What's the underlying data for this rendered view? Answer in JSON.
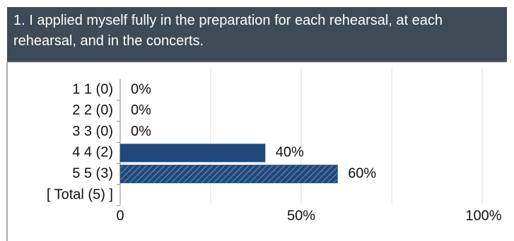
{
  "question": {
    "title": "1. I applied myself fully in the preparation for each rehearsal, at each rehearsal, and in the concerts."
  },
  "chart_data": {
    "type": "bar",
    "orientation": "horizontal",
    "categories": [
      "1 1 (0)",
      "2 2 (0)",
      "3 3 (0)",
      "4 4 (2)",
      "5 5 (3)",
      "[ Total (5) ]"
    ],
    "values": [
      0,
      0,
      0,
      40,
      60,
      null
    ],
    "value_labels": [
      "0%",
      "0%",
      "0%",
      "40%",
      "60%",
      null
    ],
    "colors": [
      "#1f497d",
      "#1f497d",
      "#1f497d",
      "#1f497d",
      "#1f497d",
      null
    ],
    "hatched": [
      false,
      false,
      false,
      false,
      true,
      false
    ],
    "xlim": [
      0,
      100
    ],
    "xticks": [
      0,
      {
        "value": 50,
        "label": "50%"
      },
      {
        "value": 100,
        "label": "100%"
      }
    ],
    "xminor": [
      25,
      75
    ],
    "grid": true
  }
}
